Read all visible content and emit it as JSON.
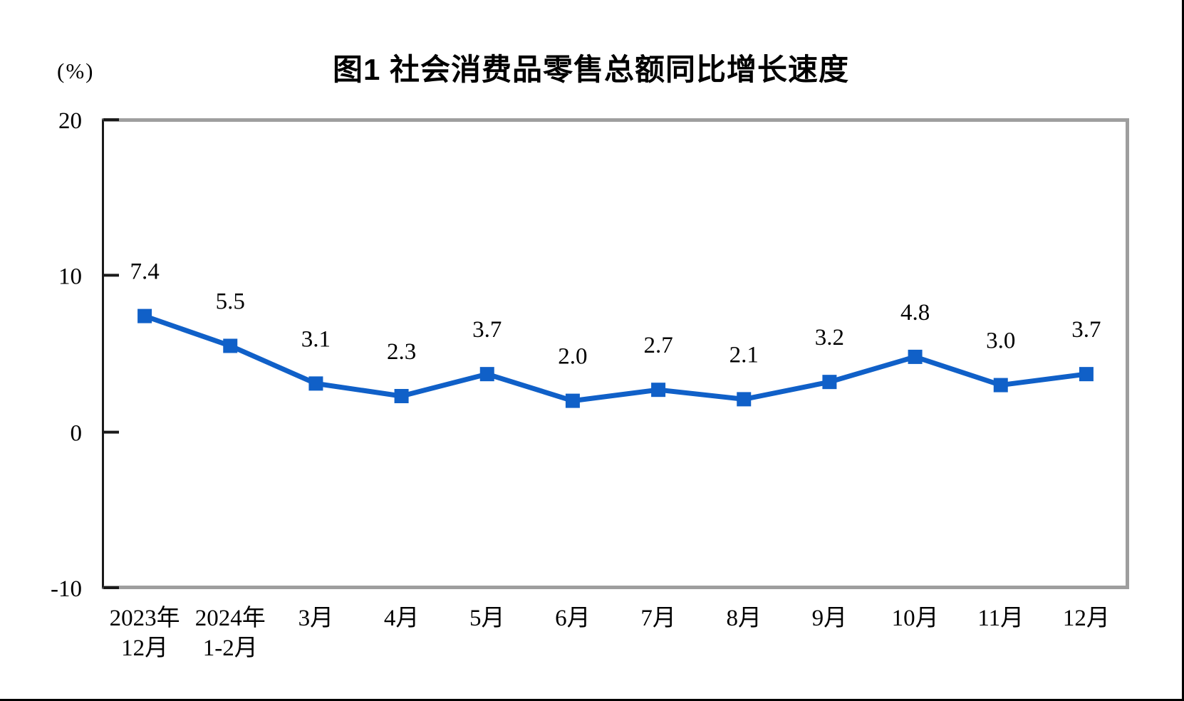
{
  "title": "图1 社会消费品零售总额同比增长速度",
  "y_axis_unit": "(%)",
  "chart_data": {
    "type": "line",
    "title": "图1 社会消费品零售总额同比增长速度",
    "categories": [
      "2023年\n12月",
      "2024年\n1-2月",
      "3月",
      "4月",
      "5月",
      "6月",
      "7月",
      "8月",
      "9月",
      "10月",
      "11月",
      "12月"
    ],
    "values": [
      7.4,
      5.5,
      3.1,
      2.3,
      3.7,
      2.0,
      2.7,
      2.1,
      3.2,
      4.8,
      3.0,
      3.7
    ],
    "value_labels": [
      "7.4",
      "5.5",
      "3.1",
      "2.3",
      "3.7",
      "2.0",
      "2.7",
      "2.1",
      "3.2",
      "4.8",
      "3.0",
      "3.7"
    ],
    "ylabel": "(%)",
    "ylim": [
      -10,
      20
    ],
    "yticks": [
      20,
      10,
      0,
      -10
    ],
    "ytick_labels": [
      "20",
      "10",
      "0",
      "-10"
    ],
    "grid": false,
    "legend": "none",
    "marker": "square",
    "data_labels_shown": true
  },
  "style": {
    "line_color": "#1060c8",
    "marker_color": "#1060c8",
    "axis_color": "#1a1a1a",
    "frame_color": "#9e9e9e",
    "text_color": "#000000",
    "background": "#ffffff"
  }
}
